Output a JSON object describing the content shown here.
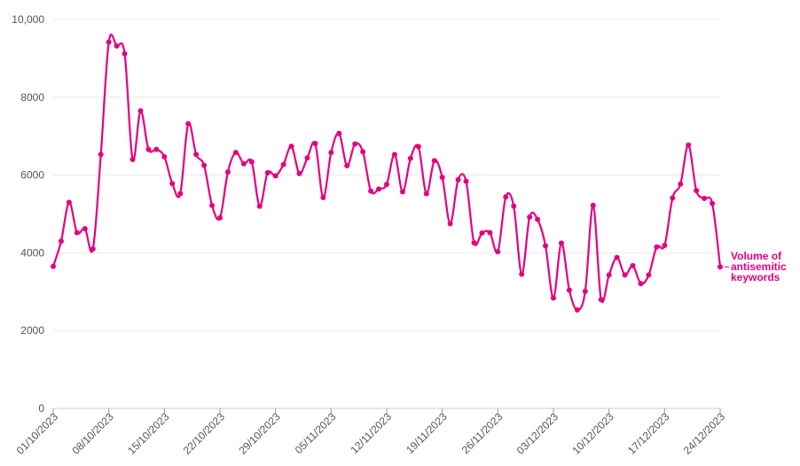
{
  "chart_data": {
    "type": "line",
    "title": "",
    "xlabel": "",
    "ylabel": "",
    "x_start": "01/10/2023",
    "x_end": "24/12/2023",
    "ylim": [
      0,
      10000
    ],
    "y_ticks": [
      "0",
      "2000",
      "4000",
      "6000",
      "8000",
      "10,000"
    ],
    "x_ticks": [
      "01/10/2023",
      "08/10/2023",
      "15/10/2023",
      "22/10/2023",
      "29/10/2023",
      "05/11/2023",
      "12/11/2023",
      "19/11/2023",
      "26/11/2023",
      "03/12/2023",
      "10/12/2023",
      "17/12/2023",
      "24/12/2023"
    ],
    "grid": true,
    "legend": "end-of-line label",
    "series": [
      {
        "name": "Volume of antisemitic keywords",
        "label_lines": [
          "Volume of",
          "antisemitic",
          "keywords"
        ],
        "color": "#e5007e",
        "values": [
          3650,
          4300,
          5300,
          4520,
          4620,
          4100,
          6530,
          9420,
          9320,
          9120,
          6400,
          7650,
          6660,
          6660,
          6470,
          5780,
          5520,
          7320,
          6530,
          6250,
          5220,
          4900,
          6080,
          6580,
          6290,
          6340,
          5200,
          6060,
          5980,
          6270,
          6740,
          6040,
          6440,
          6810,
          5420,
          6580,
          7070,
          6240,
          6800,
          6600,
          5590,
          5640,
          5760,
          6530,
          5570,
          6430,
          6730,
          5520,
          6370,
          5940,
          4750,
          5880,
          5840,
          4260,
          4510,
          4520,
          4030,
          5440,
          5200,
          3450,
          4920,
          4860,
          4180,
          2840,
          4250,
          3040,
          2530,
          3010,
          5220,
          2800,
          3430,
          3880,
          3430,
          3670,
          3210,
          3430,
          4150,
          4190,
          5410,
          5770,
          6770,
          5600,
          5400,
          5270,
          3640
        ]
      }
    ]
  }
}
